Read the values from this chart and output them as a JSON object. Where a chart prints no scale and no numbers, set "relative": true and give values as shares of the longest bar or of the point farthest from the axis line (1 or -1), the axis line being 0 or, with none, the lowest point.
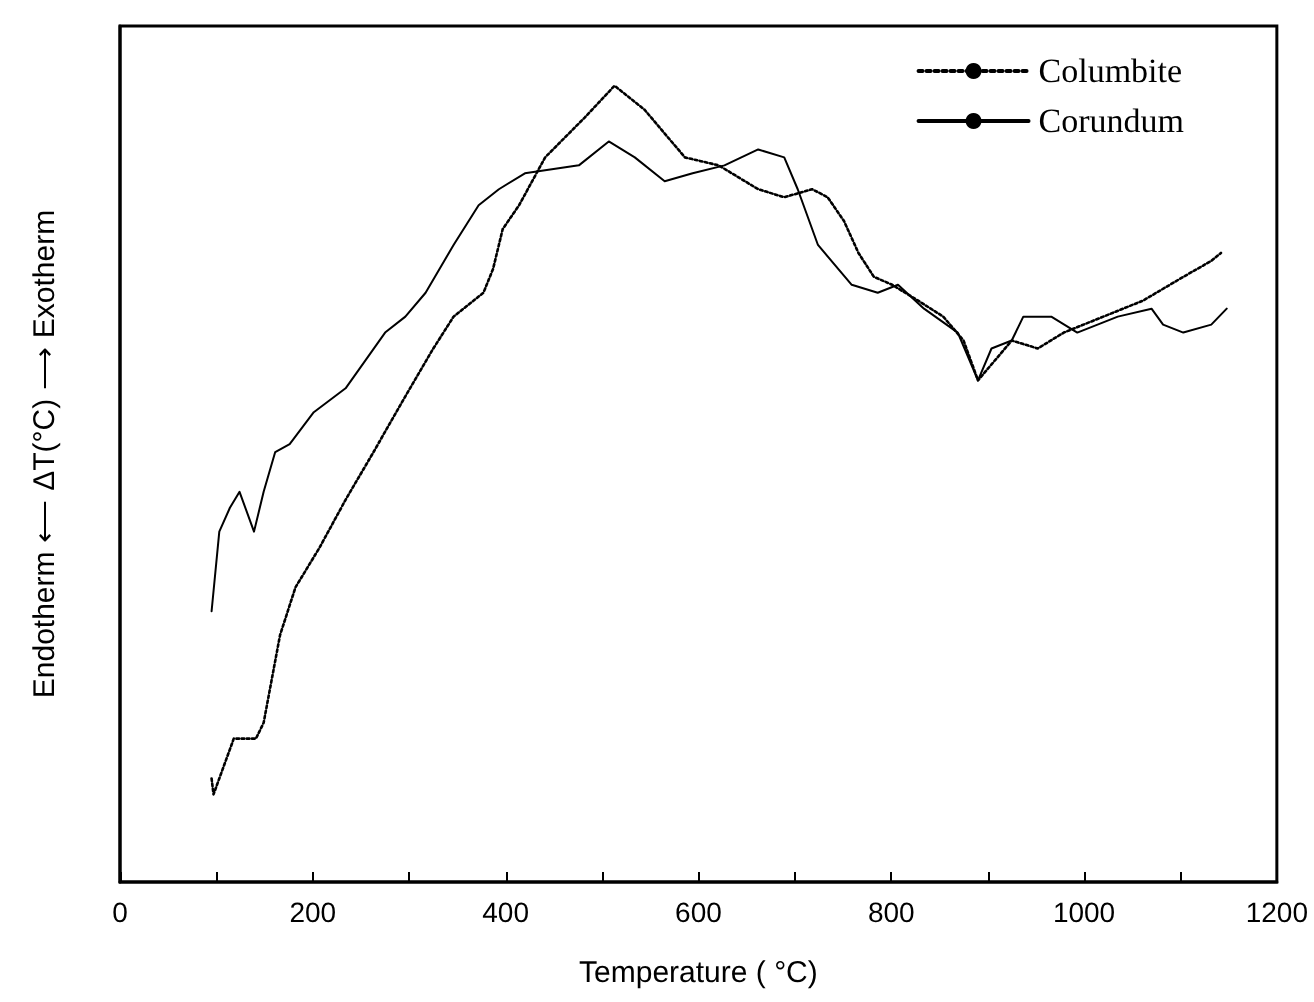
{
  "chart_data": {
    "type": "line",
    "relative": true,
    "xlabel": "Temperature ( °C)",
    "ylabel": "Endotherm ⟵ ΔT(°C) ⟶ Exotherm",
    "xlim": [
      0,
      1200
    ],
    "xticks": [
      0,
      {
        "value": 100,
        "label": null
      },
      200,
      {
        "value": 300,
        "label": null
      },
      400,
      {
        "value": 500,
        "label": null
      },
      600,
      {
        "value": 700,
        "label": null
      },
      800,
      {
        "value": 900,
        "label": null
      },
      1000,
      {
        "value": 1100,
        "label": null
      },
      1200
    ],
    "legend": "top right",
    "marker": "none",
    "grid": false,
    "series": [
      {
        "name": "Columbite",
        "color": "#000000",
        "line_style": "dotted",
        "x": [
          95,
          97,
          118,
          141,
          149,
          166,
          182,
          207,
          234,
          263,
          296,
          325,
          346,
          377,
          387,
          397,
          414,
          441,
          482,
          513,
          544,
          586,
          621,
          662,
          689,
          718,
          734,
          751,
          766,
          782,
          801,
          828,
          854,
          875,
          890,
          904,
          925,
          952,
          979,
          1020,
          1061,
          1103,
          1132,
          1142
        ],
        "values": [
          0.13,
          0.11,
          0.18,
          0.18,
          0.2,
          0.31,
          0.37,
          0.42,
          0.48,
          0.54,
          0.61,
          0.67,
          0.71,
          0.74,
          0.77,
          0.82,
          0.85,
          0.91,
          0.96,
          1.0,
          0.97,
          0.91,
          0.9,
          0.87,
          0.86,
          0.87,
          0.86,
          0.83,
          0.79,
          0.76,
          0.75,
          0.73,
          0.71,
          0.68,
          0.63,
          0.65,
          0.68,
          0.67,
          0.69,
          0.71,
          0.73,
          0.76,
          0.78,
          0.79
        ]
      },
      {
        "name": "Corundum",
        "color": "#000000",
        "line_style": "solid",
        "x": [
          95,
          103,
          114,
          124,
          139,
          149,
          161,
          176,
          201,
          234,
          275,
          296,
          317,
          346,
          372,
          393,
          420,
          476,
          507,
          534,
          565,
          594,
          627,
          662,
          689,
          703,
          724,
          759,
          786,
          807,
          834,
          869,
          890,
          904,
          925,
          937,
          966,
          993,
          1035,
          1070,
          1082,
          1103,
          1132,
          1148
        ],
        "values": [
          0.34,
          0.44,
          0.47,
          0.49,
          0.44,
          0.49,
          0.54,
          0.55,
          0.59,
          0.62,
          0.69,
          0.71,
          0.74,
          0.8,
          0.85,
          0.87,
          0.89,
          0.9,
          0.93,
          0.91,
          0.88,
          0.89,
          0.9,
          0.92,
          0.91,
          0.87,
          0.8,
          0.75,
          0.74,
          0.75,
          0.72,
          0.69,
          0.63,
          0.67,
          0.68,
          0.71,
          0.71,
          0.69,
          0.71,
          0.72,
          0.7,
          0.69,
          0.7,
          0.72
        ]
      }
    ]
  }
}
